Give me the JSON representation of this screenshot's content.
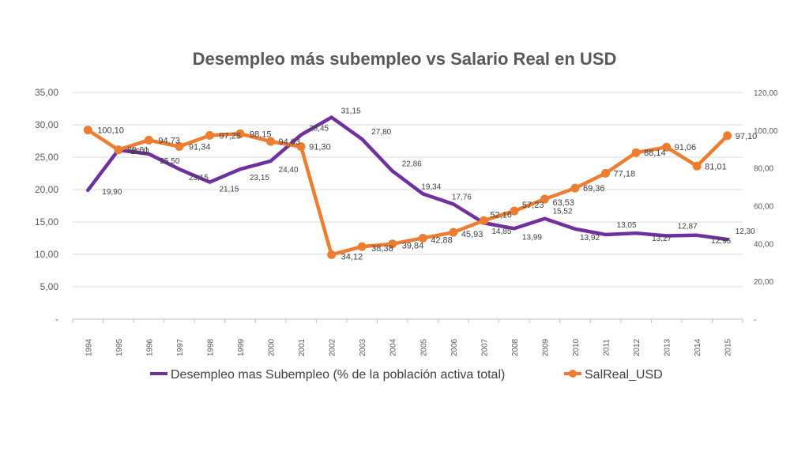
{
  "chart_data": {
    "type": "line",
    "title": "Desempleo más subempleo vs Salario Real en USD",
    "x": [
      "1994",
      "1995",
      "1996",
      "1997",
      "1998",
      "1999",
      "2000",
      "2001",
      "2002",
      "2003",
      "2004",
      "2005",
      "2006",
      "2007",
      "2008",
      "2009",
      "2010",
      "2011",
      "2012",
      "2013",
      "2014",
      "2015"
    ],
    "y_left": {
      "ticks": [
        "-",
        "5,00",
        "10,00",
        "15,00",
        "20,00",
        "25,00",
        "30,00",
        "35,00"
      ],
      "ylim": [
        0,
        35
      ]
    },
    "y_right": {
      "ticks": [
        "-",
        "20,00",
        "40,00",
        "60,00",
        "80,00",
        "100,00",
        "120,00"
      ],
      "ylim": [
        0,
        120
      ]
    },
    "grid": true,
    "legend_position": "bottom",
    "series": [
      {
        "name": "Desempleo mas Subempleo (% de la población activa total)",
        "axis": "left",
        "color": "#7030A0",
        "marker": "none",
        "values": [
          19.9,
          26.11,
          25.5,
          23.15,
          21.15,
          23.15,
          24.4,
          28.45,
          31.15,
          27.8,
          22.86,
          19.34,
          17.76,
          14.85,
          13.99,
          15.52,
          13.92,
          13.05,
          13.27,
          12.87,
          12.95,
          12.3
        ],
        "labels": [
          "19,90",
          "26,11",
          "25,50",
          "23,15",
          "21,15",
          "23,15",
          "24,40",
          "28,45",
          "31,15",
          "27,80",
          "22,86",
          "19,34",
          "17,76",
          "14,85",
          "13,99",
          "15,52",
          "13,92",
          "13,05",
          "13,27",
          "12,87",
          "12,95",
          "12,30"
        ]
      },
      {
        "name": "SalReal_USD",
        "axis": "right",
        "color": "#ED7D31",
        "marker": "circle",
        "values": [
          100.1,
          89.61,
          94.73,
          91.34,
          97.25,
          98.15,
          94.03,
          91.3,
          34.12,
          38.38,
          39.84,
          42.88,
          45.93,
          52.16,
          57.23,
          63.53,
          69.36,
          77.18,
          88.14,
          91.06,
          81.01,
          97.1
        ],
        "labels": [
          "100,10",
          "89,61",
          "94,73",
          "91,34",
          "97,25",
          "98,15",
          "94,03",
          "91,30",
          "34,12",
          "38,38",
          "39,84",
          "42,88",
          "45,93",
          "52,16",
          "57,23",
          "63,53",
          "69,36",
          "77,18",
          "88,14",
          "91,06",
          "81,01",
          "97,10"
        ]
      }
    ]
  }
}
